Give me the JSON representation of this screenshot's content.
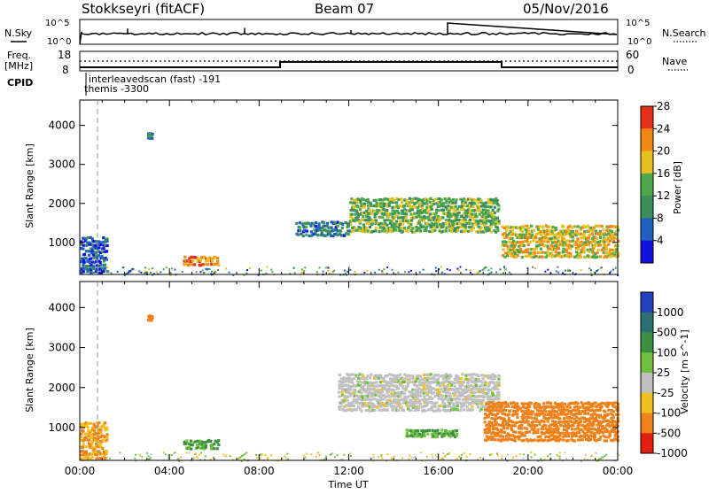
{
  "header": {
    "station": "Stokkseyri (fitACF)",
    "beam": "Beam 07",
    "date": "05/Nov/2016"
  },
  "nsky_panel": {
    "left_label": "N.Sky",
    "right_label": "N.Search",
    "left_ticks": [
      "10^5",
      "10^0"
    ],
    "right_ticks": [
      "10^5",
      "10^0"
    ]
  },
  "freq_panel": {
    "left_label_1": "Freq.",
    "left_label_2": "[MHz]",
    "right_label": "Nave",
    "left_ticks": [
      "18",
      "8"
    ],
    "right_ticks": [
      "60",
      "0"
    ],
    "cpid_label": "CPID",
    "cpid_text_1": "interleavedscan (fast) -191",
    "cpid_text_2": "themis -3300"
  },
  "chart_data": [
    {
      "type": "heatmap",
      "title": "Power",
      "ylabel": "Slant Range [km]",
      "xlabel": "",
      "ylim": [
        180,
        4650
      ],
      "xlim_hours": [
        0,
        24
      ],
      "x_ticks": [
        "00:00",
        "04:00",
        "08:00",
        "12:00",
        "16:00",
        "20:00",
        "00:00"
      ],
      "y_ticks": [
        1000,
        2000,
        3000,
        4000
      ],
      "colorbar": {
        "label": "Power [dB]",
        "ticks": [
          4,
          8,
          12,
          16,
          20,
          24,
          28
        ],
        "colors": [
          "#1010e0",
          "#2060c0",
          "#3c8f5a",
          "#4ca84a",
          "#e6c020",
          "#f08818",
          "#e83018"
        ]
      },
      "regions": [
        {
          "x": [
            12.0,
            18.7
          ],
          "y": [
            1300,
            2200
          ],
          "level": 14
        },
        {
          "x": [
            4.6,
            6.2
          ],
          "y": [
            450,
            700
          ],
          "level": 22
        },
        {
          "x": [
            0.0,
            1.2
          ],
          "y": [
            250,
            1200
          ],
          "level": 6
        },
        {
          "x": [
            18.8,
            24.0
          ],
          "y": [
            650,
            1500
          ],
          "level": 18
        },
        {
          "x": [
            9.6,
            12.0
          ],
          "y": [
            1200,
            1600
          ],
          "level": 8
        },
        {
          "x": [
            3.0,
            3.2
          ],
          "y": [
            3700,
            3850
          ],
          "level": 10
        }
      ]
    },
    {
      "type": "heatmap",
      "title": "Velocity",
      "ylabel": "Slant Range [km]",
      "xlabel": "Time UT",
      "ylim": [
        180,
        4650
      ],
      "xlim_hours": [
        0,
        24
      ],
      "x_ticks": [
        "00:00",
        "04:00",
        "08:00",
        "12:00",
        "16:00",
        "20:00",
        "00:00"
      ],
      "y_ticks": [
        1000,
        2000,
        3000,
        4000
      ],
      "colorbar": {
        "label": "Velocity [m s^-1]",
        "ticks": [
          "1000",
          "500",
          "100",
          "25",
          "-25",
          "-100",
          "-500",
          "-1000"
        ],
        "colors": [
          "#2040c0",
          "#2c7070",
          "#3c9040",
          "#70c040",
          "#c0c0c0",
          "#f0c020",
          "#f08018",
          "#e02010"
        ]
      },
      "regions": [
        {
          "x": [
            11.5,
            18.7
          ],
          "y": [
            1450,
            2400
          ],
          "level": 0
        },
        {
          "x": [
            18.0,
            24.0
          ],
          "y": [
            700,
            1700
          ],
          "level": -300
        },
        {
          "x": [
            4.6,
            6.2
          ],
          "y": [
            500,
            750
          ],
          "level": 120
        },
        {
          "x": [
            0.0,
            1.2
          ],
          "y": [
            250,
            1200
          ],
          "level": -100
        },
        {
          "x": [
            14.5,
            16.8
          ],
          "y": [
            800,
            1000
          ],
          "level": 100
        },
        {
          "x": [
            3.0,
            3.2
          ],
          "y": [
            3700,
            3850
          ],
          "level": -300
        }
      ]
    }
  ],
  "axis": {
    "xlabel": "Time UT",
    "x_ticks": [
      "00:00",
      "04:00",
      "08:00",
      "12:00",
      "16:00",
      "20:00",
      "00:00"
    ]
  }
}
